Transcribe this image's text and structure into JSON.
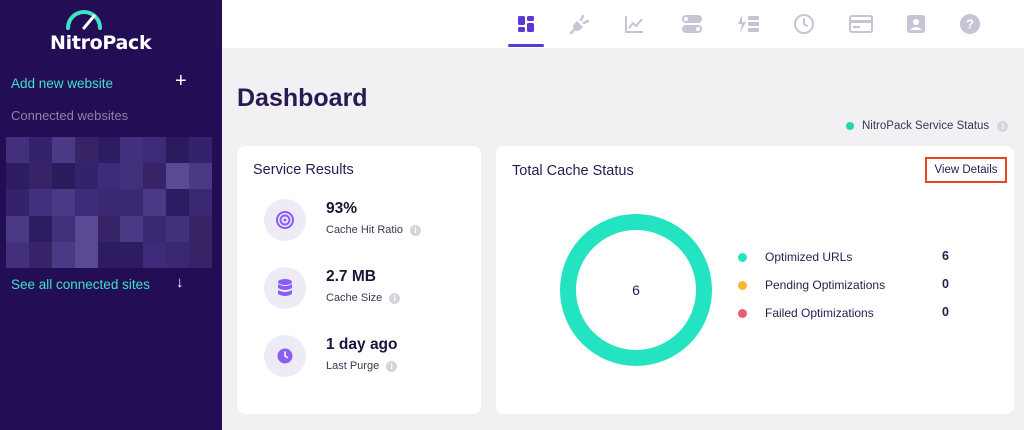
{
  "sidebar": {
    "brand": "NitroPack",
    "add_website": "Add new website",
    "add_icon": "plus-icon",
    "connected_label": "Connected websites",
    "see_all": "See all connected sites",
    "see_all_icon": "arrow-down-icon"
  },
  "topnav": {
    "icons": [
      "dashboard-icon",
      "plug-icon",
      "chart-line-icon",
      "toggles-icon",
      "bolt-list-icon",
      "history-icon",
      "credit-card-icon",
      "user-badge-icon",
      "help-icon"
    ],
    "active": "dashboard-icon"
  },
  "main": {
    "title": "Dashboard",
    "service_status": "NitroPack Service Status"
  },
  "service_results": {
    "title": "Service Results",
    "metrics": [
      {
        "value": "93%",
        "label": "Cache Hit Ratio",
        "icon": "target-icon"
      },
      {
        "value": "2.7 MB",
        "label": "Cache Size",
        "icon": "database-icon"
      },
      {
        "value": "1 day ago",
        "label": "Last Purge",
        "icon": "clock-icon"
      }
    ]
  },
  "cache_status": {
    "title": "Total Cache Status",
    "view_details": "View Details",
    "donut_total": "6",
    "legend": [
      {
        "label": "Optimized URLs",
        "value": "6",
        "color": "#24e3c0"
      },
      {
        "label": "Pending Optimizations",
        "value": "0",
        "color": "#f7b731"
      },
      {
        "label": "Failed Optimizations",
        "value": "0",
        "color": "#f05a6e"
      }
    ]
  },
  "colors": {
    "sidebar_bg": "#230e56",
    "accent_teal": "#3de3c4",
    "accent_purple": "#5b3ad1",
    "highlight_red": "#e8461f"
  }
}
